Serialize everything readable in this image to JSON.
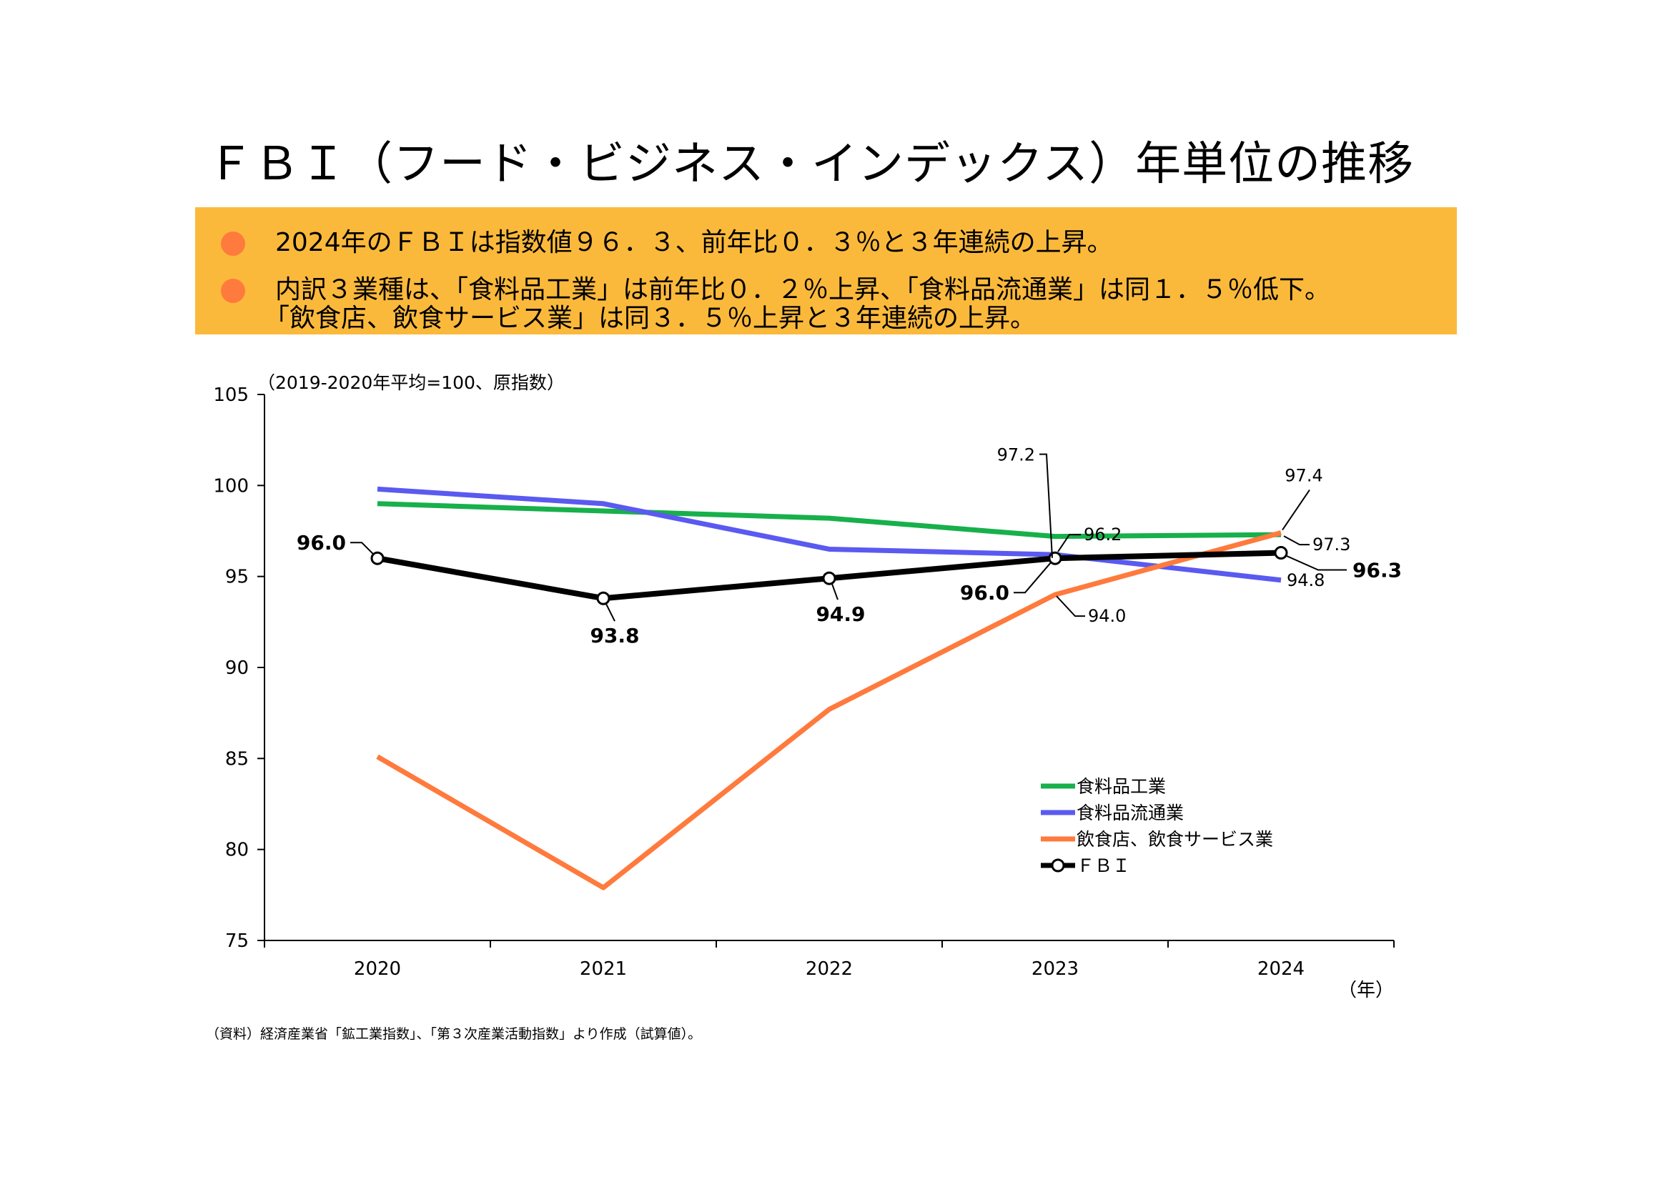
{
  "header": {
    "title": "ＦＢＩ（フード・ビジネス・インデックス）年単位の推移"
  },
  "summary": {
    "bullets": [
      {
        "lines": [
          "2024年のＦＢＩは指数値９６．３、前年比０．３％と３年連続の上昇。"
        ]
      },
      {
        "lines": [
          "内訳３業種は、「食料品工業」は前年比０．２％上昇、「食料品流通業」は同１．５％低下。",
          "「飲食店、飲食サービス業」は同３．５％上昇と３年連続の上昇。"
        ]
      }
    ]
  },
  "colors": {
    "summary_bg": "#FBB93B",
    "bullet": "#FF7A3D",
    "green": "#17B04B",
    "blue": "#5A5AF0",
    "orange": "#FF7A3D",
    "black": "#000000"
  },
  "chart_data": {
    "type": "line",
    "title": "ＦＢＩ（フード・ビジネス・インデックス）年単位の推移",
    "ylabel": "（2019-2020年平均=100、原指数）",
    "xlabel": "（年）",
    "categories": [
      "2020",
      "2021",
      "2022",
      "2023",
      "2024"
    ],
    "yticks": [
      "105",
      "100",
      "95",
      "90",
      "85",
      "80",
      "75"
    ],
    "ylim": [
      75,
      105
    ],
    "grid": false,
    "legend_position": "bottom-right",
    "series": [
      {
        "name": "食料品工業",
        "key": "green",
        "values": [
          99.0,
          98.6,
          98.2,
          97.2,
          97.3
        ]
      },
      {
        "name": "食料品流通業",
        "key": "blue",
        "values": [
          99.8,
          99.0,
          96.5,
          96.2,
          94.8
        ]
      },
      {
        "name": "飲食店、飲食サービス業",
        "key": "orange",
        "values": [
          85.1,
          77.9,
          87.7,
          94.0,
          97.4
        ]
      },
      {
        "name": "ＦＢＩ",
        "key": "black",
        "values": [
          96.0,
          93.8,
          94.9,
          96.0,
          96.3
        ],
        "markers": true
      }
    ],
    "annotations": {
      "fbi_2020": "96.0",
      "fbi_2021": "93.8",
      "fbi_2022": "94.9",
      "fbi_2023": "96.0",
      "fbi_2024": "96.3",
      "green_2023": "97.2",
      "green_2024": "97.3",
      "blue_2023": "96.2",
      "blue_2024": "94.8",
      "orange_2023": "94.0",
      "orange_2024": "97.4"
    }
  },
  "footer": {
    "source": "（資料）経済産業省「鉱工業指数」、「第３次産業活動指数」より作成（試算値）。"
  }
}
